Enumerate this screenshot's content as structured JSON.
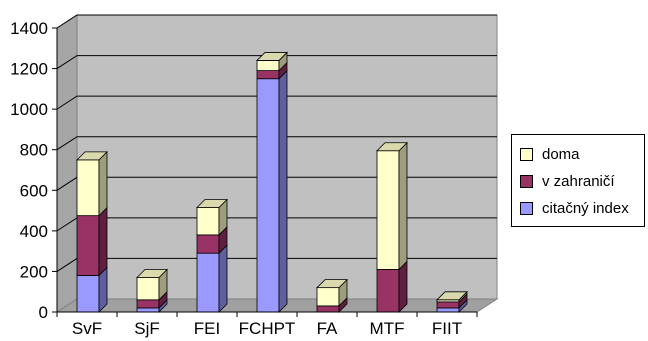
{
  "chart_data": {
    "type": "bar",
    "stacked": true,
    "three_d": true,
    "title": "",
    "xlabel": "",
    "ylabel": "",
    "ylim": [
      0,
      1400
    ],
    "yticks": [
      0,
      200,
      400,
      600,
      800,
      1000,
      1200,
      1400
    ],
    "yticks_labels": [
      "0",
      "200",
      "400",
      "600",
      "800",
      "1000",
      "1200",
      "1400"
    ],
    "grid": true,
    "legend_position": "right",
    "categories": [
      "SvF",
      "SjF",
      "FEI",
      "FCHPT",
      "FA",
      "MTF",
      "FIIT"
    ],
    "series": [
      {
        "name": "citačný index",
        "color": "#9999ff",
        "values": [
          180,
          20,
          290,
          1150,
          0,
          0,
          20
        ]
      },
      {
        "name": "v zahraničí",
        "color": "#993366",
        "values": [
          295,
          40,
          90,
          40,
          30,
          210,
          30
        ]
      },
      {
        "name": "doma",
        "color": "#ffffcc",
        "values": [
          275,
          110,
          135,
          50,
          90,
          585,
          10
        ]
      }
    ],
    "legend_order": [
      "doma",
      "v zahraničí",
      "citačný index"
    ]
  }
}
